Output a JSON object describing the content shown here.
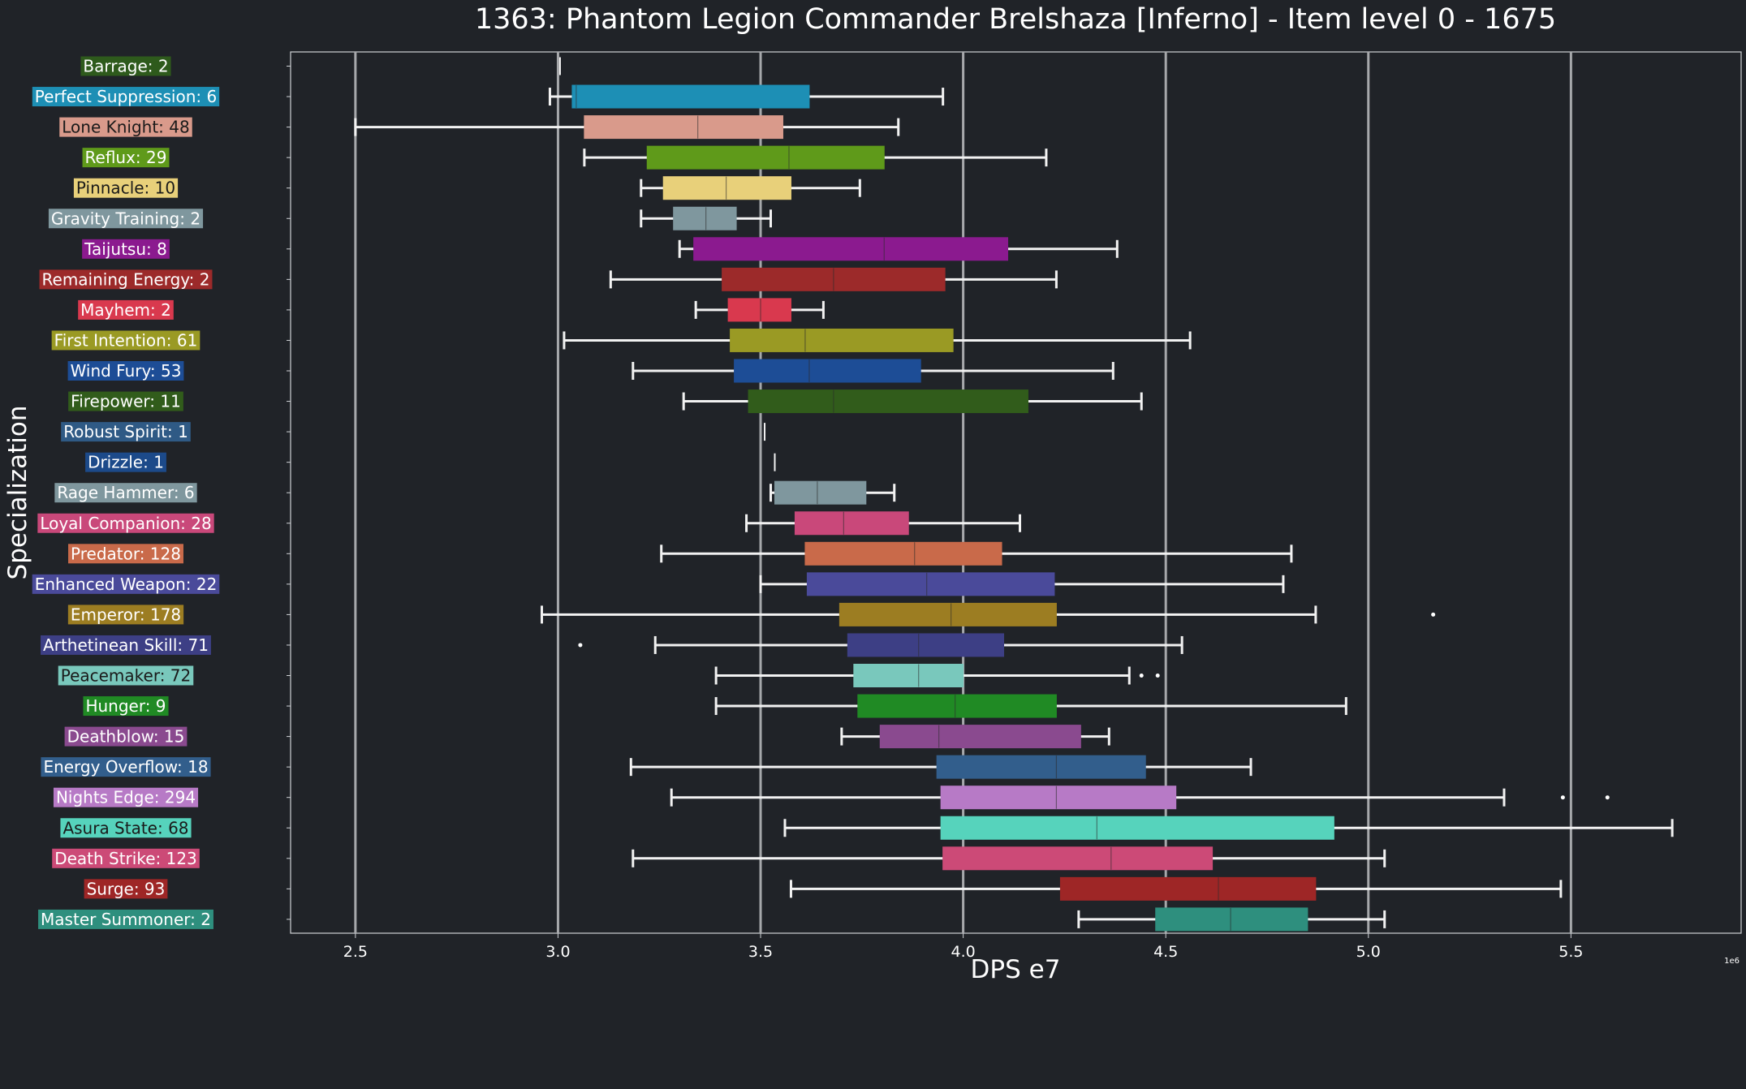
{
  "chart_data": {
    "type": "box",
    "title": "1363: Phantom Legion Commander Brelshaza [Inferno] - Item level 0 - 1675",
    "xlabel": "DPS e7",
    "ylabel": "Specialization",
    "x_offset_label": "1e6",
    "xlim": [
      2.34,
      5.92
    ],
    "xticks": [
      2.5,
      3.0,
      3.5,
      4.0,
      4.5,
      5.0,
      5.5
    ],
    "xtick_labels": [
      "2.5",
      "3.0",
      "3.5",
      "4.0",
      "4.5",
      "5.0",
      "5.5"
    ],
    "grid": "vertical",
    "categories": [
      {
        "label": "Barrage: 2",
        "color": "#2e5a1c",
        "min": 3.005,
        "q1": 3.005,
        "median": 3.005,
        "q3": 3.005,
        "max": 3.005,
        "outliers": []
      },
      {
        "label": "Perfect Suppression: 6",
        "color": "#1d8fb5",
        "min": 2.98,
        "q1": 3.035,
        "median": 3.045,
        "q3": 3.62,
        "max": 3.95,
        "outliers": []
      },
      {
        "label": "Lone Knight: 48",
        "color": "#d99a8b",
        "min": 2.5,
        "q1": 3.065,
        "median": 3.345,
        "q3": 3.555,
        "max": 3.84,
        "outliers": []
      },
      {
        "label": "Reflux: 29",
        "color": "#5f9a1a",
        "min": 3.065,
        "q1": 3.22,
        "median": 3.57,
        "q3": 3.805,
        "max": 4.205,
        "outliers": []
      },
      {
        "label": "Pinnacle: 10",
        "color": "#e8d07a",
        "min": 3.205,
        "q1": 3.26,
        "median": 3.415,
        "q3": 3.575,
        "max": 3.745,
        "outliers": []
      },
      {
        "label": "Gravity Training: 2",
        "color": "#7f979e",
        "min": 3.205,
        "q1": 3.285,
        "median": 3.365,
        "q3": 3.44,
        "max": 3.525,
        "outliers": []
      },
      {
        "label": "Taijutsu: 8",
        "color": "#8b1a8f",
        "min": 3.3,
        "q1": 3.335,
        "median": 3.805,
        "q3": 4.11,
        "max": 4.38,
        "outliers": []
      },
      {
        "label": "Remaining Energy: 2",
        "color": "#9c2a2a",
        "min": 3.13,
        "q1": 3.405,
        "median": 3.68,
        "q3": 3.955,
        "max": 4.23,
        "outliers": []
      },
      {
        "label": "Mayhem: 2",
        "color": "#d9394e",
        "min": 3.34,
        "q1": 3.42,
        "median": 3.5,
        "q3": 3.575,
        "max": 3.655,
        "outliers": []
      },
      {
        "label": "First Intention: 61",
        "color": "#9a9a24",
        "min": 3.015,
        "q1": 3.425,
        "median": 3.61,
        "q3": 3.975,
        "max": 4.56,
        "outliers": []
      },
      {
        "label": "Wind Fury: 53",
        "color": "#1d4d96",
        "min": 3.185,
        "q1": 3.435,
        "median": 3.62,
        "q3": 3.895,
        "max": 4.37,
        "outliers": []
      },
      {
        "label": "Firepower: 11",
        "color": "#315c1b",
        "min": 3.31,
        "q1": 3.47,
        "median": 3.68,
        "q3": 4.16,
        "max": 4.44,
        "outliers": []
      },
      {
        "label": "Robust Spirit: 1",
        "color": "#2f5a85",
        "min": 3.51,
        "q1": 3.51,
        "median": 3.51,
        "q3": 3.51,
        "max": 3.51,
        "outliers": []
      },
      {
        "label": "Drizzle: 1",
        "color": "#1c4a8a",
        "min": 3.535,
        "q1": 3.535,
        "median": 3.535,
        "q3": 3.535,
        "max": 3.535,
        "outliers": []
      },
      {
        "label": "Rage Hammer: 6",
        "color": "#7f979e",
        "min": 3.525,
        "q1": 3.535,
        "median": 3.64,
        "q3": 3.76,
        "max": 3.83,
        "outliers": []
      },
      {
        "label": "Loyal Companion: 28",
        "color": "#c9487a",
        "min": 3.465,
        "q1": 3.585,
        "median": 3.705,
        "q3": 3.865,
        "max": 4.14,
        "outliers": []
      },
      {
        "label": "Predator: 128",
        "color": "#c96a4a",
        "min": 3.255,
        "q1": 3.61,
        "median": 3.88,
        "q3": 4.095,
        "max": 4.81,
        "outliers": []
      },
      {
        "label": "Enhanced Weapon: 22",
        "color": "#4a4a9a",
        "min": 3.5,
        "q1": 3.615,
        "median": 3.91,
        "q3": 4.225,
        "max": 4.79,
        "outliers": []
      },
      {
        "label": "Emperor: 178",
        "color": "#9c7d22",
        "min": 2.96,
        "q1": 3.695,
        "median": 3.97,
        "q3": 4.23,
        "max": 4.87,
        "outliers": [
          5.16
        ]
      },
      {
        "label": "Arthetinean Skill: 71",
        "color": "#3d3f85",
        "min": 3.24,
        "q1": 3.715,
        "median": 3.89,
        "q3": 4.1,
        "max": 4.54,
        "outliers": [
          3.055
        ]
      },
      {
        "label": "Peacemaker: 72",
        "color": "#79c8bc",
        "min": 3.39,
        "q1": 3.73,
        "median": 3.89,
        "q3": 4.0,
        "max": 4.41,
        "outliers": [
          4.44,
          4.48
        ]
      },
      {
        "label": "Hunger: 9",
        "color": "#208a24",
        "min": 3.39,
        "q1": 3.74,
        "median": 3.98,
        "q3": 4.23,
        "max": 4.945,
        "outliers": []
      },
      {
        "label": "Deathblow: 15",
        "color": "#8a4a8f",
        "min": 3.7,
        "q1": 3.795,
        "median": 3.94,
        "q3": 4.29,
        "max": 4.36,
        "outliers": []
      },
      {
        "label": "Energy Overflow: 18",
        "color": "#325e8c",
        "min": 3.18,
        "q1": 3.935,
        "median": 4.23,
        "q3": 4.45,
        "max": 4.71,
        "outliers": []
      },
      {
        "label": "Nights Edge: 294",
        "color": "#b77ac6",
        "min": 3.28,
        "q1": 3.945,
        "median": 4.23,
        "q3": 4.525,
        "max": 5.335,
        "outliers": [
          5.48,
          5.59
        ]
      },
      {
        "label": "Asura State: 68",
        "color": "#56d3bc",
        "min": 3.56,
        "q1": 3.945,
        "median": 4.33,
        "q3": 4.915,
        "max": 5.75,
        "outliers": []
      },
      {
        "label": "Death Strike: 123",
        "color": "#cc4a77",
        "min": 3.185,
        "q1": 3.95,
        "median": 4.365,
        "q3": 4.615,
        "max": 5.04,
        "outliers": []
      },
      {
        "label": "Surge: 93",
        "color": "#9e2626",
        "min": 3.575,
        "q1": 4.24,
        "median": 4.63,
        "q3": 4.87,
        "max": 5.475,
        "outliers": []
      },
      {
        "label": "Master Summoner: 2",
        "color": "#2e8f7e",
        "min": 4.285,
        "q1": 4.475,
        "median": 4.66,
        "q3": 4.85,
        "max": 5.04,
        "outliers": []
      }
    ]
  }
}
